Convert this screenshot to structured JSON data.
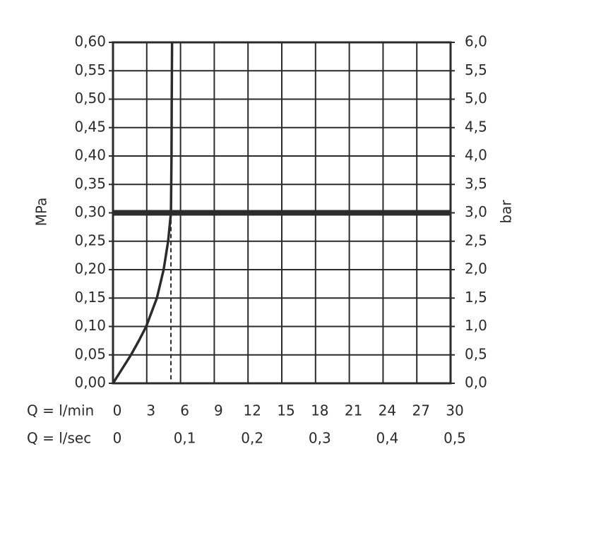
{
  "chart_data": {
    "type": "line",
    "xlabel": "Q = l/min",
    "x2label": "Q = l/sec",
    "ylabel": "MPa",
    "y2label": "bar",
    "xlim": [
      0,
      30
    ],
    "xticks": [
      0,
      3,
      6,
      9,
      12,
      15,
      18,
      21,
      24,
      27,
      30
    ],
    "x2lim": [
      0,
      0.5
    ],
    "x2ticks": [
      0,
      {
        "value": 0.1,
        "label": "0,1"
      },
      {
        "value": 0.2,
        "label": "0,2"
      },
      {
        "value": 0.3,
        "label": "0,3"
      },
      {
        "value": 0.4,
        "label": "0,4"
      },
      {
        "value": 0.5,
        "label": "0,5"
      }
    ],
    "ylim": [
      0,
      0.6
    ],
    "yticks": [
      {
        "value": 0,
        "label": "0,00"
      },
      {
        "value": 0.05,
        "label": "0,05"
      },
      {
        "value": 0.1,
        "label": "0,10"
      },
      {
        "value": 0.15,
        "label": "0,15"
      },
      {
        "value": 0.2,
        "label": "0,20"
      },
      {
        "value": 0.25,
        "label": "0,25"
      },
      {
        "value": 0.3,
        "label": "0,30"
      },
      {
        "value": 0.35,
        "label": "0,35"
      },
      {
        "value": 0.4,
        "label": "0,40"
      },
      {
        "value": 0.45,
        "label": "0,45"
      },
      {
        "value": 0.5,
        "label": "0,50"
      },
      {
        "value": 0.55,
        "label": "0,55"
      },
      {
        "value": 0.6,
        "label": "0,60"
      }
    ],
    "y2lim": [
      0,
      6
    ],
    "y2ticks": [
      {
        "value": 0,
        "label": "0,0"
      },
      {
        "value": 0.5,
        "label": "0,5"
      },
      {
        "value": 1,
        "label": "1,0"
      },
      {
        "value": 1.5,
        "label": "1,5"
      },
      {
        "value": 2,
        "label": "2,0"
      },
      {
        "value": 2.5,
        "label": "2,5"
      },
      {
        "value": 3,
        "label": "3,0"
      },
      {
        "value": 3.5,
        "label": "3,5"
      },
      {
        "value": 4,
        "label": "4,0"
      },
      {
        "value": 4.5,
        "label": "4,5"
      },
      {
        "value": 5,
        "label": "5,0"
      },
      {
        "value": 5.5,
        "label": "5,5"
      },
      {
        "value": 6,
        "label": "6,0"
      }
    ],
    "grid": true,
    "series": [
      {
        "color": "#2b2b2b",
        "x": [
          0,
          0.8,
          1.6,
          2.3,
          2.95,
          3.9,
          4.5,
          4.9,
          5.15,
          5.2,
          5.22,
          5.25
        ],
        "values": [
          0,
          0.025,
          0.05,
          0.075,
          0.1,
          0.15,
          0.2,
          0.25,
          0.3,
          0.4,
          0.5,
          0.6
        ]
      }
    ],
    "reference_y": 0.3,
    "operating_point": {
      "x": 5.15,
      "y": 0.3
    }
  }
}
